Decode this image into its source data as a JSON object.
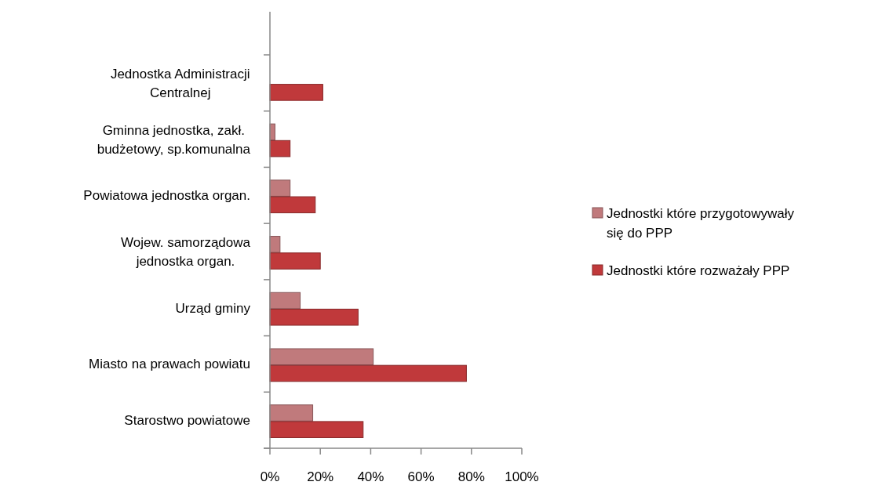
{
  "chart_data": {
    "type": "bar",
    "orientation": "horizontal",
    "categories": [
      "Jednostka Administracji Centralnej",
      "Gminna jednostka, zakł. budżetowy, sp.komunalna",
      "Powiatowa jednostka organ.",
      "Wojew. samorządowa jednostka organ.",
      "Urząd gminy",
      "Miasto na prawach powiatu",
      "Starostwo powiatowe"
    ],
    "series": [
      {
        "name": "Jednostki które przygotowywały się do PPP",
        "color": "#c07a7c",
        "values": [
          0,
          2,
          8,
          4,
          12,
          41,
          17
        ]
      },
      {
        "name": "Jednostki które rozważały PPP",
        "color": "#c0393b",
        "values": [
          21,
          8,
          18,
          20,
          35,
          78,
          37
        ]
      }
    ],
    "xlim": [
      0,
      100
    ],
    "xticks": [
      {
        "value": 0,
        "label": "0%"
      },
      {
        "value": 20,
        "label": "20%"
      },
      {
        "value": 40,
        "label": "40%"
      },
      {
        "value": 60,
        "label": "60%"
      },
      {
        "value": 80,
        "label": "80%"
      },
      {
        "value": 100,
        "label": "100%"
      }
    ],
    "grid": false,
    "legend": "right"
  }
}
